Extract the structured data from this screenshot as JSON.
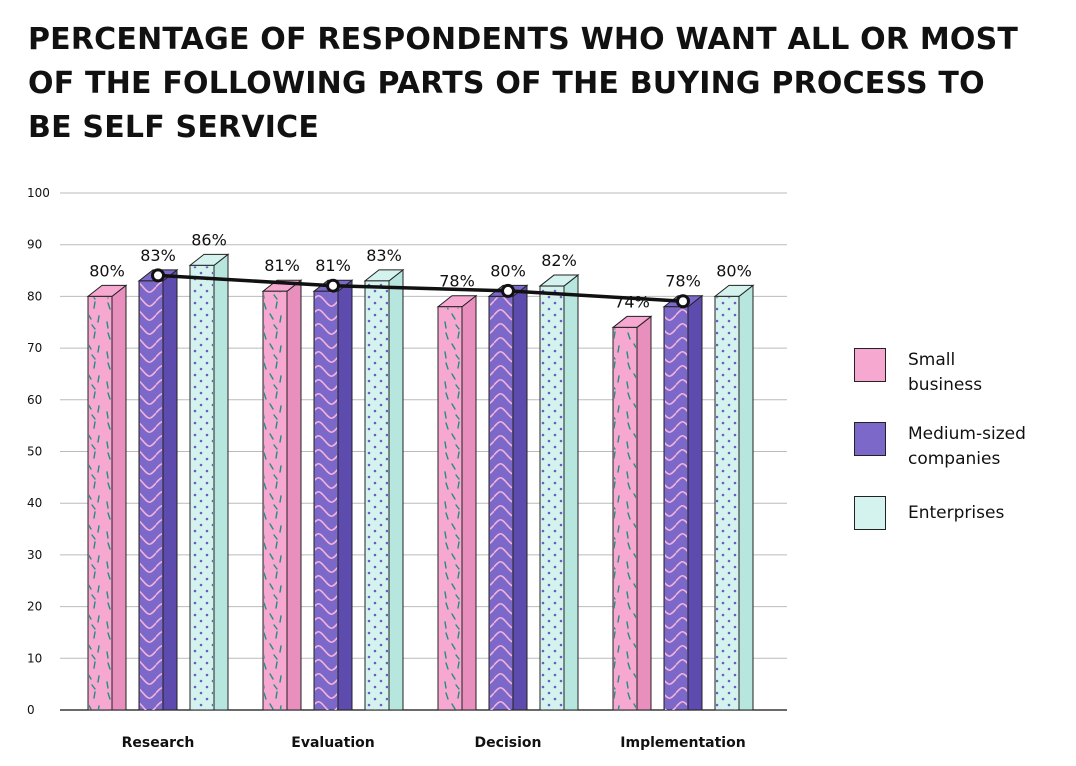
{
  "title": "PERCENTAGE OF RESPONDENTS WHO WANT ALL OR MOST OF THE FOLLOWING PARTS OF THE BUYING PROCESS TO BE SELF SERVICE",
  "colors": {
    "small": "#f7a8d0",
    "medium": "#7b68c8",
    "enterprise": "#d4f3ee",
    "pattern_small": "#1f8f84",
    "pattern_medium": "#f5b3dc",
    "pattern_enterprise": "#6a5fc0",
    "line": "#111111",
    "grid": "#bbbbbb"
  },
  "chart_data": {
    "type": "bar",
    "title": "PERCENTAGE OF RESPONDENTS WHO WANT ALL OR MOST OF THE FOLLOWING PARTS OF THE BUYING PROCESS TO BE SELF SERVICE",
    "categories": [
      "Research",
      "Evaluation",
      "Decision",
      "Implementation"
    ],
    "series": [
      {
        "name": "Small business",
        "values": [
          80,
          81,
          78,
          74
        ],
        "labels": [
          "80%",
          "81%",
          "78%",
          "74%"
        ]
      },
      {
        "name": "Medium-sized companies",
        "values": [
          83,
          81,
          80,
          78
        ],
        "labels": [
          "83%",
          "81%",
          "80%",
          "78%"
        ]
      },
      {
        "name": "Enterprises",
        "values": [
          86,
          83,
          82,
          80
        ],
        "labels": [
          "86%",
          "83%",
          "82%",
          "80%"
        ]
      }
    ],
    "overlay_line": {
      "series": "Medium-sized companies",
      "values": [
        83,
        81,
        80,
        78
      ]
    },
    "ylim": [
      0,
      100
    ],
    "yticks": [
      0,
      10,
      20,
      30,
      40,
      50,
      60,
      70,
      80,
      90,
      100
    ],
    "ytick_labels": [
      "0",
      "10",
      "20",
      "30",
      "40",
      "50",
      "60",
      "70",
      "80",
      "90",
      "100"
    ],
    "xlabel": "",
    "ylabel": "",
    "grid": true,
    "legend_position": "right"
  },
  "legend": [
    {
      "label_lines": [
        "Small",
        "business"
      ],
      "key": "small"
    },
    {
      "label_lines": [
        "Medium-sized",
        "companies"
      ],
      "key": "medium"
    },
    {
      "label_lines": [
        "Enterprises"
      ],
      "key": "enterprise"
    }
  ]
}
